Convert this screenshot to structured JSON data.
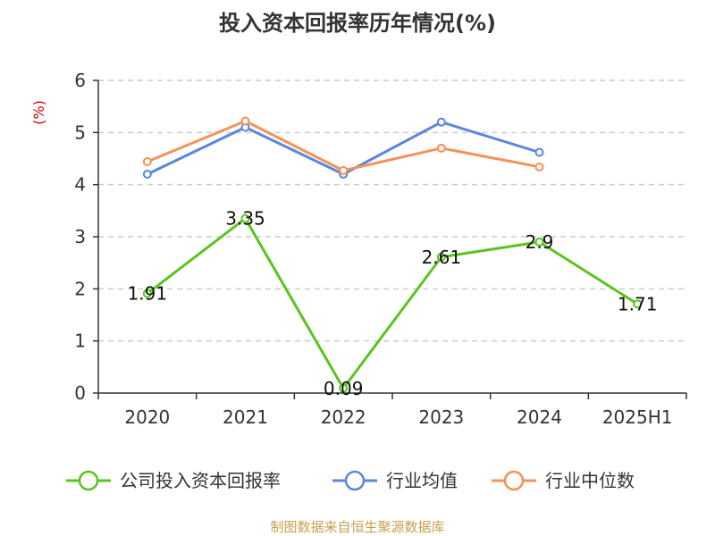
{
  "chart_data": {
    "type": "line",
    "title": "投入资本回报率历年情况(%)",
    "ylabel": "(%)",
    "xlabel": "",
    "categories": [
      "2020",
      "2021",
      "2022",
      "2023",
      "2024",
      "2025H1"
    ],
    "ylim": [
      0,
      6
    ],
    "yticks": [
      "0",
      "1",
      "2",
      "3",
      "4",
      "5",
      "6"
    ],
    "grid": true,
    "legend_position": "bottom",
    "series": [
      {
        "name": "公司投入资本回报率",
        "color": "#5ac41f",
        "values": [
          1.91,
          3.35,
          0.09,
          2.61,
          2.9,
          1.71
        ],
        "labels": [
          "1.91",
          "3.35",
          "0.09",
          "2.61",
          "2.9",
          "1.71"
        ]
      },
      {
        "name": "行业均值",
        "color": "#5a87dc",
        "values": [
          4.2,
          5.1,
          4.2,
          5.2,
          4.62,
          null
        ]
      },
      {
        "name": "行业中位数",
        "color": "#f5915a",
        "values": [
          4.44,
          5.22,
          4.27,
          4.7,
          4.34,
          null
        ]
      }
    ]
  },
  "colors": {
    "axis": "#333333",
    "grid": "#cccccc",
    "ylabel": "#cc0000",
    "source": "#c8a050"
  },
  "source_text": "制图数据来自恒生聚源数据库"
}
